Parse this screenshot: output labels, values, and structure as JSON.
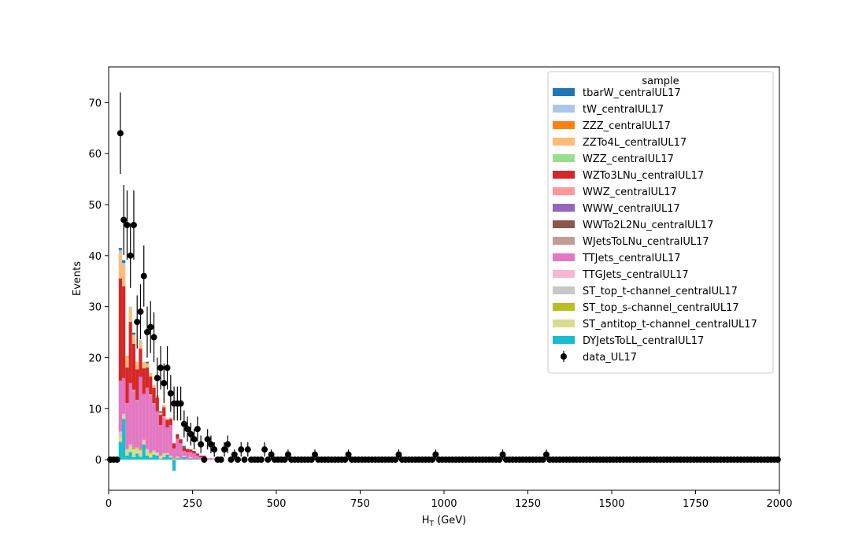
{
  "chart_data": {
    "type": "bar",
    "subtype": "stacked-histogram-with-data-points",
    "xlabel": "H",
    "xlabel_sub": "T",
    "xlabel_unit": " (GeV)",
    "ylabel": "Events",
    "xlim": [
      0,
      2000
    ],
    "ylim": [
      -6,
      77
    ],
    "x_ticks": [
      0,
      250,
      500,
      750,
      1000,
      1250,
      1500,
      1750,
      2000
    ],
    "y_ticks": [
      0,
      10,
      20,
      30,
      40,
      50,
      60,
      70
    ],
    "bin_width": 10,
    "grid": false,
    "legend": {
      "title": "sample",
      "placement": "top-right"
    },
    "stack_order": [
      "DYJetsToLL_centralUL17",
      "ST_antitop_t-channel_centralUL17",
      "ST_top_s-channel_centralUL17",
      "ST_top_t-channel_centralUL17",
      "TTGJets_centralUL17",
      "TTJets_centralUL17",
      "WJetsToLNu_centralUL17",
      "WWTo2L2Nu_centralUL17",
      "WWW_centralUL17",
      "WWZ_centralUL17",
      "WZTo3LNu_centralUL17",
      "WZZ_centralUL17",
      "ZZTo4L_centralUL17",
      "ZZZ_centralUL17",
      "tW_centralUL17",
      "tbarW_centralUL17"
    ],
    "series": [
      {
        "name": "tbarW_centralUL17",
        "color": "#1f77b4",
        "values": [
          {
            "x": 30,
            "v": 0.4
          },
          {
            "x": 40,
            "v": 0.5
          },
          {
            "x": 70,
            "v": 0.4
          },
          {
            "x": 110,
            "v": 0.3
          },
          {
            "x": 150,
            "v": 0.3
          },
          {
            "x": 220,
            "v": 0.3
          }
        ]
      },
      {
        "name": "tW_centralUL17",
        "color": "#aec7e8",
        "values": [
          {
            "x": 30,
            "v": 0.6
          },
          {
            "x": 40,
            "v": 0.6
          },
          {
            "x": 60,
            "v": 0.3
          },
          {
            "x": 90,
            "v": 0.4
          }
        ]
      },
      {
        "name": "ZZZ_centralUL17",
        "color": "#ff7f0e",
        "values": [
          {
            "x": 50,
            "v": 0.2
          }
        ]
      },
      {
        "name": "ZZTo4L_centralUL17",
        "color": "#ffbb78",
        "values": [
          {
            "x": 30,
            "v": 5.0
          },
          {
            "x": 40,
            "v": 4.0
          },
          {
            "x": 50,
            "v": 2.0
          },
          {
            "x": 60,
            "v": 2.5
          },
          {
            "x": 70,
            "v": 1.8
          },
          {
            "x": 80,
            "v": 1.5
          },
          {
            "x": 90,
            "v": 1.2
          },
          {
            "x": 100,
            "v": 1.0
          },
          {
            "x": 110,
            "v": 0.8
          },
          {
            "x": 120,
            "v": 0.7
          },
          {
            "x": 130,
            "v": 0.6
          },
          {
            "x": 140,
            "v": 0.5
          },
          {
            "x": 150,
            "v": 0.4
          },
          {
            "x": 160,
            "v": 0.4
          },
          {
            "x": 170,
            "v": 0.3
          },
          {
            "x": 180,
            "v": 0.3
          }
        ]
      },
      {
        "name": "WZZ_centralUL17",
        "color": "#98df8a",
        "values": [
          {
            "x": 60,
            "v": 0.2
          },
          {
            "x": 100,
            "v": 0.2
          }
        ]
      },
      {
        "name": "WZTo3LNu_centralUL17",
        "color": "#d62728",
        "values": [
          {
            "x": 30,
            "v": 20.0
          },
          {
            "x": 40,
            "v": 18.0
          },
          {
            "x": 50,
            "v": 7.0
          },
          {
            "x": 60,
            "v": 12.0
          },
          {
            "x": 70,
            "v": 9.0
          },
          {
            "x": 80,
            "v": 6.0
          },
          {
            "x": 90,
            "v": 5.5
          },
          {
            "x": 100,
            "v": 5.0
          },
          {
            "x": 110,
            "v": 4.0
          },
          {
            "x": 120,
            "v": 3.5
          },
          {
            "x": 130,
            "v": 3.0
          },
          {
            "x": 140,
            "v": 2.5
          },
          {
            "x": 150,
            "v": 2.0
          },
          {
            "x": 160,
            "v": 1.8
          },
          {
            "x": 170,
            "v": 1.5
          },
          {
            "x": 180,
            "v": 1.2
          },
          {
            "x": 190,
            "v": 1.0
          },
          {
            "x": 200,
            "v": 0.9
          },
          {
            "x": 210,
            "v": 0.8
          },
          {
            "x": 220,
            "v": 0.7
          },
          {
            "x": 230,
            "v": 0.6
          },
          {
            "x": 240,
            "v": 0.5
          },
          {
            "x": 250,
            "v": 0.5
          },
          {
            "x": 260,
            "v": 0.4
          },
          {
            "x": 270,
            "v": 0.3
          },
          {
            "x": 280,
            "v": 0.3
          }
        ]
      },
      {
        "name": "WWZ_centralUL17",
        "color": "#ff9896",
        "values": [
          {
            "x": 70,
            "v": 0.3
          },
          {
            "x": 120,
            "v": 0.3
          },
          {
            "x": 160,
            "v": 0.2
          }
        ]
      },
      {
        "name": "WWW_centralUL17",
        "color": "#9467bd",
        "values": [
          {
            "x": 90,
            "v": 0.2
          }
        ]
      },
      {
        "name": "WWTo2L2Nu_centralUL17",
        "color": "#8c564b",
        "values": [
          {
            "x": 140,
            "v": 0.2
          }
        ]
      },
      {
        "name": "WJetsToLNu_centralUL17",
        "color": "#c49c94",
        "values": [
          {
            "x": 80,
            "v": 0.3
          },
          {
            "x": 130,
            "v": 0.3
          }
        ]
      },
      {
        "name": "TTJets_centralUL17",
        "color": "#e377c2",
        "values": [
          {
            "x": 30,
            "v": 10.0
          },
          {
            "x": 40,
            "v": 7.0
          },
          {
            "x": 50,
            "v": 9.0
          },
          {
            "x": 60,
            "v": 12.0
          },
          {
            "x": 70,
            "v": 11.0
          },
          {
            "x": 80,
            "v": 9.0
          },
          {
            "x": 90,
            "v": 14.0
          },
          {
            "x": 100,
            "v": 9.0
          },
          {
            "x": 110,
            "v": 12.0
          },
          {
            "x": 120,
            "v": 11.0
          },
          {
            "x": 130,
            "v": 9.0
          },
          {
            "x": 140,
            "v": 8.0
          },
          {
            "x": 150,
            "v": 6.0
          },
          {
            "x": 160,
            "v": 7.0
          },
          {
            "x": 170,
            "v": 5.0
          },
          {
            "x": 180,
            "v": 6.0
          },
          {
            "x": 190,
            "v": 2.0
          },
          {
            "x": 200,
            "v": 3.5
          },
          {
            "x": 210,
            "v": 3.0
          },
          {
            "x": 220,
            "v": 1.0
          },
          {
            "x": 230,
            "v": 1.5
          },
          {
            "x": 240,
            "v": 1.0
          },
          {
            "x": 250,
            "v": 1.2
          },
          {
            "x": 260,
            "v": 0.6
          },
          {
            "x": 270,
            "v": 0.5
          },
          {
            "x": 280,
            "v": 0.4
          },
          {
            "x": 290,
            "v": 0.3
          },
          {
            "x": 300,
            "v": 0.3
          },
          {
            "x": 310,
            "v": 0.2
          }
        ]
      },
      {
        "name": "TTGJets_centralUL17",
        "color": "#f7b6d2",
        "values": [
          {
            "x": 30,
            "v": 0.5
          },
          {
            "x": 50,
            "v": 0.3
          },
          {
            "x": 100,
            "v": 0.3
          },
          {
            "x": 150,
            "v": 0.2
          }
        ]
      },
      {
        "name": "ST_top_t-channel_centralUL17",
        "color": "#c7c7c7",
        "values": [
          {
            "x": 30,
            "v": 0.5
          },
          {
            "x": 40,
            "v": 0.4
          },
          {
            "x": 60,
            "v": 0.5
          },
          {
            "x": 80,
            "v": 0.4
          },
          {
            "x": 110,
            "v": 0.3
          },
          {
            "x": 130,
            "v": 0.3
          },
          {
            "x": 160,
            "v": 0.2
          }
        ]
      },
      {
        "name": "ST_top_s-channel_centralUL17",
        "color": "#bcbd22",
        "values": [
          {
            "x": 70,
            "v": 0.4
          },
          {
            "x": 90,
            "v": 0.3
          },
          {
            "x": 120,
            "v": 0.3
          }
        ]
      },
      {
        "name": "ST_antitop_t-channel_centralUL17",
        "color": "#dbdb8d",
        "values": [
          {
            "x": 30,
            "v": 1.0
          },
          {
            "x": 40,
            "v": 0.6
          },
          {
            "x": 50,
            "v": 1.0
          },
          {
            "x": 60,
            "v": 1.0
          },
          {
            "x": 70,
            "v": 1.5
          },
          {
            "x": 80,
            "v": 0.8
          },
          {
            "x": 90,
            "v": 1.2
          },
          {
            "x": 100,
            "v": 0.6
          },
          {
            "x": 110,
            "v": 1.0
          },
          {
            "x": 120,
            "v": 0.8
          },
          {
            "x": 130,
            "v": 0.5
          },
          {
            "x": 140,
            "v": 0.6
          },
          {
            "x": 150,
            "v": 0.4
          },
          {
            "x": 160,
            "v": 0.6
          },
          {
            "x": 170,
            "v": 0.3
          },
          {
            "x": 180,
            "v": 0.4
          },
          {
            "x": 190,
            "v": 0.2
          },
          {
            "x": 200,
            "v": 0.3
          },
          {
            "x": 220,
            "v": 0.2
          },
          {
            "x": 240,
            "v": 0.2
          }
        ]
      },
      {
        "name": "DYJetsToLL_centralUL17",
        "color": "#17becf",
        "values": [
          {
            "x": 30,
            "v": 3.5
          },
          {
            "x": 40,
            "v": 8.0
          },
          {
            "x": 50,
            "v": 0.8
          },
          {
            "x": 60,
            "v": 1.5
          },
          {
            "x": 70,
            "v": 0.5
          },
          {
            "x": 80,
            "v": 1.2
          },
          {
            "x": 90,
            "v": 0.6
          },
          {
            "x": 100,
            "v": 3.0
          },
          {
            "x": 110,
            "v": 0.8
          },
          {
            "x": 120,
            "v": 0.4
          },
          {
            "x": 130,
            "v": 1.0
          },
          {
            "x": 140,
            "v": 0.8
          },
          {
            "x": 150,
            "v": 0.2
          },
          {
            "x": 160,
            "v": 0.5
          },
          {
            "x": 170,
            "v": 1.0
          },
          {
            "x": 180,
            "v": 0.4
          },
          {
            "x": 190,
            "v": -2.2
          },
          {
            "x": 200,
            "v": 0.3
          },
          {
            "x": 210,
            "v": 0.2
          },
          {
            "x": 220,
            "v": 0.5
          },
          {
            "x": 240,
            "v": 0.3
          },
          {
            "x": 260,
            "v": 0.2
          },
          {
            "x": 280,
            "v": 0.1
          }
        ]
      }
    ],
    "data_series": {
      "name": "data_UL17",
      "color": "#000000",
      "points": [
        {
          "x": 5,
          "y": 0
        },
        {
          "x": 15,
          "y": 0
        },
        {
          "x": 25,
          "y": 0
        },
        {
          "x": 35,
          "y": 64
        },
        {
          "x": 45,
          "y": 47
        },
        {
          "x": 55,
          "y": 46
        },
        {
          "x": 65,
          "y": 40
        },
        {
          "x": 75,
          "y": 46
        },
        {
          "x": 85,
          "y": 27
        },
        {
          "x": 95,
          "y": 29
        },
        {
          "x": 105,
          "y": 36
        },
        {
          "x": 115,
          "y": 25
        },
        {
          "x": 125,
          "y": 26
        },
        {
          "x": 135,
          "y": 24
        },
        {
          "x": 145,
          "y": 16
        },
        {
          "x": 155,
          "y": 18
        },
        {
          "x": 165,
          "y": 15
        },
        {
          "x": 175,
          "y": 18
        },
        {
          "x": 185,
          "y": 13
        },
        {
          "x": 195,
          "y": 11
        },
        {
          "x": 205,
          "y": 11
        },
        {
          "x": 215,
          "y": 11
        },
        {
          "x": 225,
          "y": 7
        },
        {
          "x": 235,
          "y": 6
        },
        {
          "x": 245,
          "y": 5
        },
        {
          "x": 255,
          "y": 4
        },
        {
          "x": 265,
          "y": 6
        },
        {
          "x": 275,
          "y": 3
        },
        {
          "x": 285,
          "y": 0
        },
        {
          "x": 295,
          "y": 4
        },
        {
          "x": 305,
          "y": 3
        },
        {
          "x": 315,
          "y": 2
        },
        {
          "x": 325,
          "y": 0
        },
        {
          "x": 335,
          "y": 0
        },
        {
          "x": 345,
          "y": 2
        },
        {
          "x": 355,
          "y": 3
        },
        {
          "x": 365,
          "y": 0
        },
        {
          "x": 375,
          "y": 1
        },
        {
          "x": 385,
          "y": 0
        },
        {
          "x": 395,
          "y": 2
        },
        {
          "x": 405,
          "y": 0
        },
        {
          "x": 415,
          "y": 2
        },
        {
          "x": 425,
          "y": 0
        },
        {
          "x": 435,
          "y": 0
        },
        {
          "x": 445,
          "y": 0
        },
        {
          "x": 455,
          "y": 0
        },
        {
          "x": 465,
          "y": 2
        },
        {
          "x": 475,
          "y": 0
        },
        {
          "x": 485,
          "y": 1
        },
        {
          "x": 495,
          "y": 0
        },
        {
          "x": 505,
          "y": 0
        },
        {
          "x": 515,
          "y": 0
        },
        {
          "x": 525,
          "y": 0
        },
        {
          "x": 535,
          "y": 1
        },
        {
          "x": 615,
          "y": 1
        },
        {
          "x": 715,
          "y": 1
        },
        {
          "x": 865,
          "y": 1
        },
        {
          "x": 975,
          "y": 1
        },
        {
          "x": 1175,
          "y": 1
        },
        {
          "x": 1305,
          "y": 1
        }
      ]
    }
  }
}
